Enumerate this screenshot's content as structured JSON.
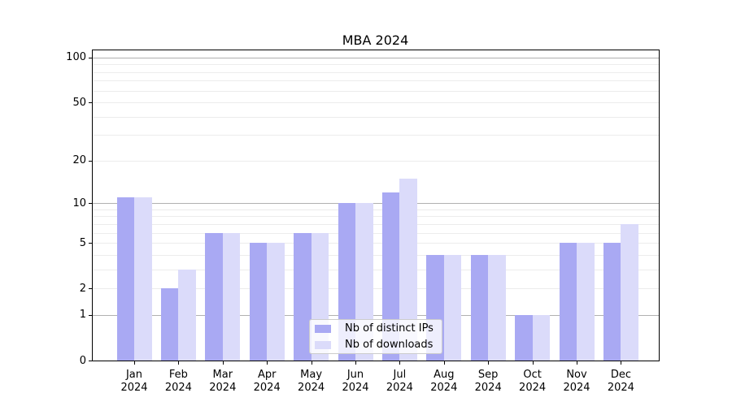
{
  "chart_data": {
    "type": "bar",
    "title": "MBA 2024",
    "categories": [
      "Jan",
      "Feb",
      "Mar",
      "Apr",
      "May",
      "Jun",
      "Jul",
      "Aug",
      "Sep",
      "Oct",
      "Nov",
      "Dec"
    ],
    "x_tick_year": "2024",
    "series": [
      {
        "name": "Nb of distinct IPs",
        "color": "#a9a9f3",
        "values": [
          11,
          2,
          6,
          5,
          6,
          10,
          12,
          4,
          4,
          1,
          5,
          5
        ]
      },
      {
        "name": "Nb of downloads",
        "color": "#dbdbfa",
        "values": [
          11,
          3,
          6,
          5,
          6,
          10,
          15,
          4,
          4,
          1,
          5,
          7
        ]
      }
    ],
    "y_axis": {
      "scale": "log1p",
      "ylim": [
        0,
        113
      ],
      "tick_values": [
        100,
        50,
        20,
        10,
        5,
        2,
        1,
        0
      ],
      "tick_labels": [
        "100",
        "50",
        "20",
        "10",
        "5",
        "2",
        "1",
        "0"
      ],
      "major_gridlines": [
        1,
        10,
        100
      ],
      "minor_gridlines": [
        2,
        3,
        4,
        5,
        6,
        7,
        8,
        9,
        20,
        30,
        40,
        50,
        60,
        70,
        80,
        90
      ]
    },
    "legend": {
      "position": "lower center"
    },
    "grid": true,
    "colors": {
      "major_grid": "#b0b0b0",
      "minor_grid": "#ececec",
      "axis": "#000000",
      "text": "#000000",
      "background": "#ffffff"
    }
  }
}
